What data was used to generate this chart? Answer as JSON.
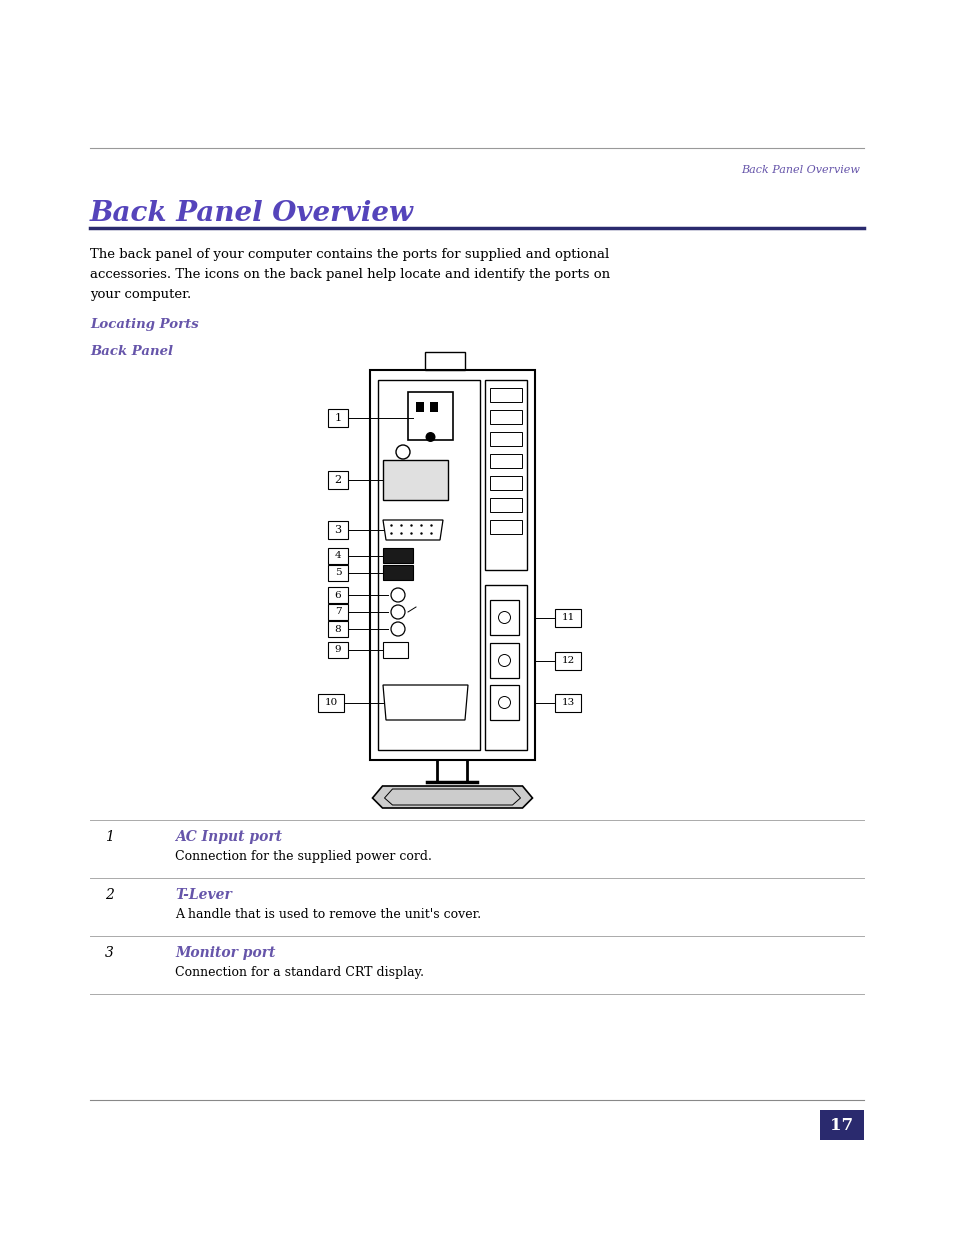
{
  "page_header_text": "Back Panel Overview",
  "page_header_color": "#6655aa",
  "title": "Back Panel Overview",
  "title_color": "#5544bb",
  "title_underline_color": "#2a2a6e",
  "body_text_line1": "The back panel of your computer contains the ports for supplied and optional",
  "body_text_line2": "accessories. The icons on the back panel help locate and identify the ports on",
  "body_text_line3": "your computer.",
  "subheading1": "Locating Ports",
  "subheading2": "Back Panel",
  "subheading_color": "#6655aa",
  "table_rows": [
    {
      "number": "1",
      "title": "AC Input port",
      "desc": "Connection for the supplied power cord."
    },
    {
      "number": "2",
      "title": "T-Lever",
      "desc": "A handle that is used to remove the unit's cover."
    },
    {
      "number": "3",
      "title": "Monitor port",
      "desc": "Connection for a standard CRT display."
    }
  ],
  "table_title_color": "#6655aa",
  "page_number": "17",
  "bg_color": "#ffffff",
  "text_color": "#000000"
}
